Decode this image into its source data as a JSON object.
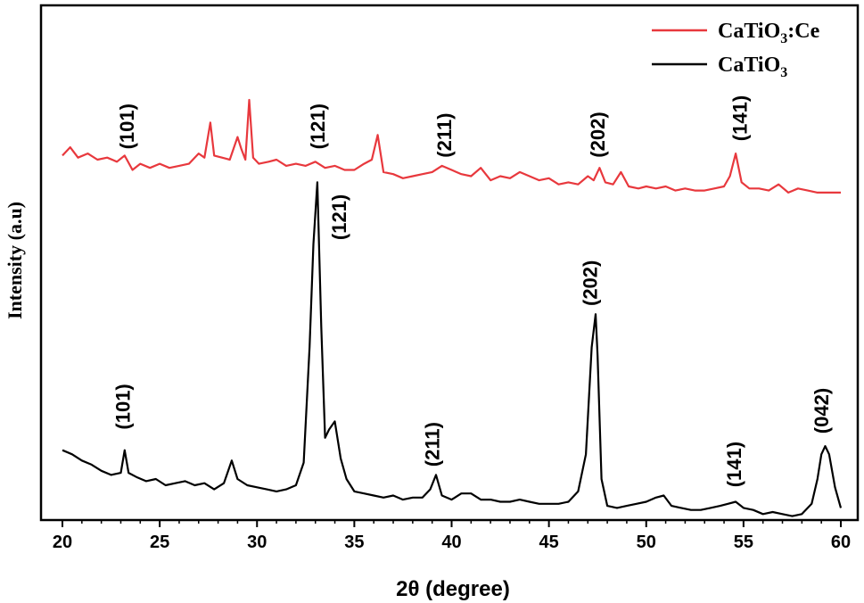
{
  "chart_data": {
    "type": "line",
    "xlabel": "2θ (degree)",
    "ylabel": "Intensity (a.u)",
    "xlim": [
      20,
      60
    ],
    "ylim": [
      0,
      100
    ],
    "x_ticks": [
      20,
      25,
      30,
      35,
      40,
      45,
      50,
      55,
      60
    ],
    "grid": false,
    "y_ticks_shown": false,
    "legend_position": "top-right",
    "colors": {
      "ce": "#e8383d",
      "pure": "#000000"
    },
    "series": [
      {
        "name": "CaTiO3:Ce",
        "legend": {
          "main": "CaTiO",
          "sub": "3",
          "suffix": ":Ce"
        },
        "color": "#e8383d",
        "x": [
          20.0,
          20.4,
          20.8,
          21.3,
          21.8,
          22.3,
          22.8,
          23.2,
          23.6,
          24.0,
          24.5,
          25.0,
          25.5,
          26.0,
          26.5,
          27.0,
          27.3,
          27.6,
          27.8,
          28.2,
          28.6,
          29.0,
          29.2,
          29.4,
          29.6,
          29.8,
          30.1,
          30.6,
          31.0,
          31.5,
          32.0,
          32.5,
          33.0,
          33.5,
          34.0,
          34.5,
          35.0,
          35.5,
          35.9,
          36.2,
          36.5,
          37.0,
          37.5,
          38.0,
          38.5,
          39.0,
          39.5,
          40.0,
          40.5,
          41.0,
          41.5,
          42.0,
          42.5,
          43.0,
          43.5,
          44.0,
          44.5,
          45.0,
          45.5,
          46.0,
          46.5,
          47.0,
          47.3,
          47.6,
          47.9,
          48.3,
          48.7,
          49.1,
          49.6,
          50.0,
          50.5,
          51.0,
          51.5,
          52.0,
          52.5,
          53.0,
          53.5,
          54.0,
          54.3,
          54.6,
          54.9,
          55.3,
          55.8,
          56.3,
          56.8,
          57.3,
          57.8,
          58.3,
          58.8,
          59.3,
          60.0
        ],
        "values": [
          86.5,
          88.5,
          86.0,
          87.0,
          85.5,
          86.0,
          85.0,
          86.5,
          83.0,
          84.5,
          83.5,
          84.5,
          83.5,
          84.0,
          84.5,
          87.0,
          86.0,
          94.5,
          86.5,
          86.0,
          85.5,
          91.0,
          88.0,
          85.5,
          100.0,
          86.0,
          84.5,
          85.0,
          85.5,
          84.0,
          84.5,
          84.0,
          85.0,
          83.5,
          84.0,
          83.0,
          83.0,
          84.5,
          85.5,
          91.5,
          82.5,
          82.0,
          81.0,
          81.5,
          82.0,
          82.5,
          84.0,
          83.0,
          82.0,
          81.5,
          83.5,
          80.5,
          81.5,
          81.0,
          82.5,
          81.5,
          80.5,
          81.0,
          79.5,
          80.0,
          79.5,
          81.5,
          80.5,
          83.5,
          80.0,
          79.5,
          82.5,
          79.0,
          78.5,
          79.0,
          78.5,
          79.0,
          78.0,
          78.5,
          78.0,
          78.0,
          78.5,
          79.0,
          81.5,
          87.0,
          80.0,
          78.5,
          78.5,
          78.0,
          79.5,
          77.5,
          78.5,
          78.0,
          77.5,
          77.5,
          77.5
        ]
      },
      {
        "name": "CaTiO3",
        "legend": {
          "main": "CaTiO",
          "sub": "3",
          "suffix": ""
        },
        "color": "#000000",
        "x": [
          20.0,
          20.5,
          21.0,
          21.5,
          22.0,
          22.5,
          23.0,
          23.2,
          23.4,
          23.8,
          24.3,
          24.8,
          25.3,
          25.8,
          26.3,
          26.8,
          27.3,
          27.8,
          28.3,
          28.7,
          29.0,
          29.5,
          30.0,
          30.5,
          31.0,
          31.5,
          32.0,
          32.4,
          32.7,
          32.9,
          33.1,
          33.3,
          33.5,
          33.7,
          34.0,
          34.3,
          34.6,
          35.0,
          35.5,
          36.0,
          36.5,
          37.0,
          37.5,
          38.0,
          38.5,
          38.9,
          39.2,
          39.5,
          40.0,
          40.5,
          41.0,
          41.5,
          42.0,
          42.5,
          43.0,
          43.5,
          44.0,
          44.5,
          45.0,
          45.5,
          46.0,
          46.5,
          46.9,
          47.2,
          47.4,
          47.5,
          47.7,
          48.0,
          48.5,
          49.0,
          49.5,
          50.0,
          50.5,
          50.9,
          51.3,
          51.8,
          52.3,
          52.8,
          53.3,
          53.8,
          54.2,
          54.6,
          55.0,
          55.5,
          56.0,
          56.5,
          57.0,
          57.5,
          58.0,
          58.5,
          58.8,
          59.0,
          59.2,
          59.4,
          59.7,
          60.0
        ],
        "values": [
          15.0,
          14.0,
          12.5,
          11.5,
          10.0,
          9.0,
          9.5,
          15.0,
          9.5,
          8.5,
          7.5,
          8.0,
          6.5,
          7.0,
          7.5,
          6.5,
          7.0,
          5.5,
          7.0,
          12.5,
          8.0,
          6.5,
          6.0,
          5.5,
          5.0,
          5.5,
          6.5,
          12.0,
          40.0,
          65.0,
          80.0,
          45.0,
          18.0,
          20.0,
          22.0,
          13.0,
          8.0,
          5.0,
          4.5,
          4.0,
          3.5,
          4.0,
          3.0,
          3.5,
          3.5,
          5.5,
          9.0,
          4.0,
          3.0,
          4.5,
          4.5,
          3.0,
          3.0,
          2.5,
          2.5,
          3.0,
          2.5,
          2.0,
          2.0,
          2.0,
          2.5,
          5.0,
          14.0,
          40.0,
          48.0,
          38.0,
          8.0,
          1.5,
          1.0,
          1.5,
          2.0,
          2.5,
          3.5,
          4.0,
          1.5,
          1.0,
          0.5,
          0.5,
          1.0,
          1.5,
          2.0,
          2.5,
          1.0,
          0.5,
          -0.5,
          0.0,
          -0.5,
          -1.0,
          -0.5,
          2.0,
          8.0,
          14.0,
          16.0,
          14.0,
          6.0,
          1.0
        ]
      }
    ],
    "annotations": {
      "ce": [
        {
          "label": "(101)",
          "x": 23.3,
          "y": 88
        },
        {
          "label": "(121)",
          "x": 33.1,
          "y": 88
        },
        {
          "label": "(211)",
          "x": 39.6,
          "y": 86
        },
        {
          "label": "(202)",
          "x": 47.5,
          "y": 86
        },
        {
          "label": "(141)",
          "x": 54.8,
          "y": 90
        }
      ],
      "pure": [
        {
          "label": "(101)",
          "x": 23.1,
          "y": 20
        },
        {
          "label": "(121)",
          "x": 34.2,
          "y": 66
        },
        {
          "label": "(211)",
          "x": 39.0,
          "y": 11
        },
        {
          "label": "(202)",
          "x": 47.1,
          "y": 50
        },
        {
          "label": "(141)",
          "x": 54.5,
          "y": 6
        },
        {
          "label": "(042)",
          "x": 59.0,
          "y": 19
        }
      ]
    }
  }
}
